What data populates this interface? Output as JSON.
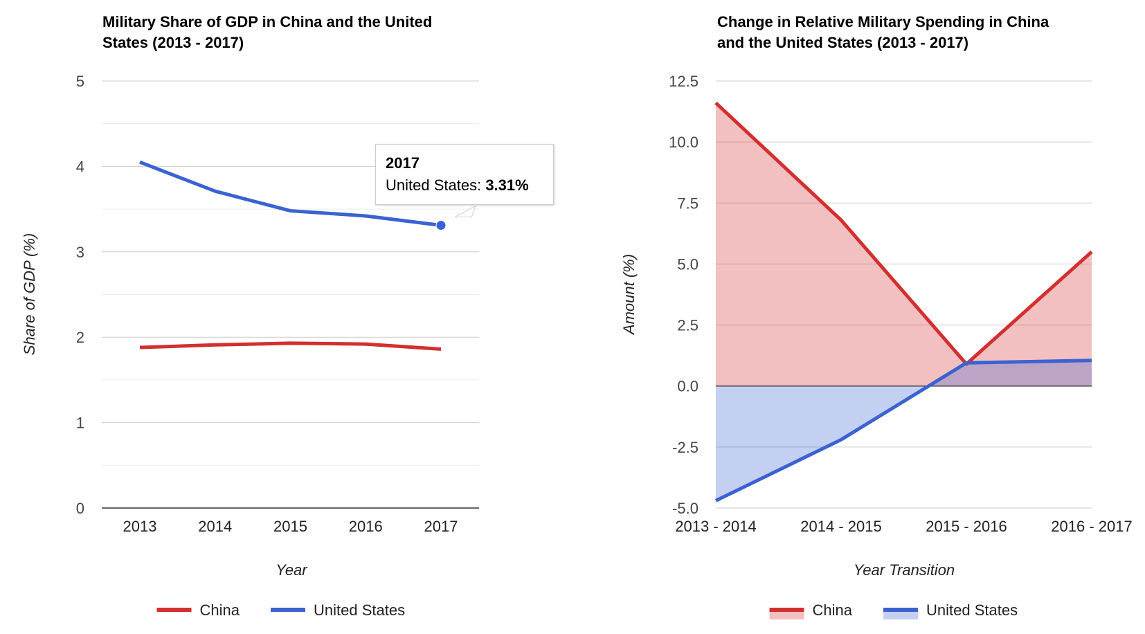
{
  "charts": [
    {
      "title_line1": "Military Share of GDP in China and the United",
      "title_line2": "States (2013 - 2017)"
    },
    {
      "title_line1": "Change in Relative Military Spending in China",
      "title_line2": "and the United States (2013 - 2017)"
    }
  ],
  "tooltip": {
    "title": "2017",
    "series": "United States",
    "value": "3.31%"
  },
  "chart_data": [
    {
      "type": "line",
      "title": "Military Share of GDP in China and the United States (2013 - 2017)",
      "xlabel": "Year",
      "ylabel": "Share of GDP (%)",
      "categories": [
        "2013",
        "2014",
        "2015",
        "2016",
        "2017"
      ],
      "ylim": [
        0,
        5
      ],
      "yticks": [
        "0",
        "1",
        "2",
        "3",
        "4",
        "5"
      ],
      "grid": true,
      "legend": "bottom",
      "series": [
        {
          "name": "China",
          "color": "#d32f2f",
          "values": [
            1.88,
            1.91,
            1.93,
            1.92,
            1.86
          ]
        },
        {
          "name": "United States",
          "color": "#3b62d1",
          "values": [
            4.05,
            3.71,
            3.48,
            3.42,
            3.31
          ]
        }
      ]
    },
    {
      "type": "area",
      "title": "Change in Relative Military Spending in China and the United States (2013 - 2017)",
      "xlabel": "Year Transition",
      "ylabel": "Amount (%)",
      "categories": [
        "2013 - 2014",
        "2014 - 2015",
        "2015 - 2016",
        "2016 - 2017"
      ],
      "ylim": [
        -5.0,
        12.5
      ],
      "yticks": [
        "-5.0",
        "-2.5",
        "0.0",
        "2.5",
        "5.0",
        "7.5",
        "10.0",
        "12.5"
      ],
      "grid": true,
      "legend": "bottom",
      "series": [
        {
          "name": "China",
          "color": "#d32f2f",
          "values": [
            11.6,
            6.8,
            0.9,
            5.5
          ]
        },
        {
          "name": "United States",
          "color": "#3b62d1",
          "values": [
            -4.7,
            -2.2,
            0.95,
            1.05
          ]
        }
      ]
    }
  ]
}
